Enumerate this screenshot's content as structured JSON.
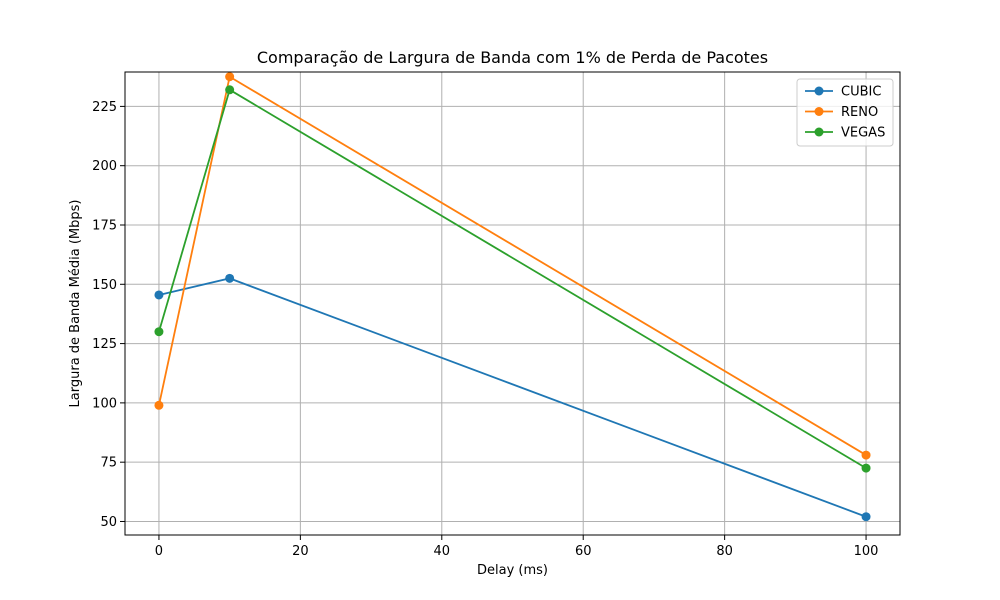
{
  "chart_data": {
    "type": "line",
    "title": "Comparação de Largura de Banda com 1% de Perda de Pacotes",
    "xlabel": "Delay (ms)",
    "ylabel": "Largura de Banda Média (Mbps)",
    "x": [
      0,
      10,
      100
    ],
    "xlim": [
      -4.8,
      104.8
    ],
    "ylim": [
      44.3,
      239.5
    ],
    "xticks": [
      0,
      20,
      40,
      60,
      80,
      100
    ],
    "yticks": [
      50,
      75,
      100,
      125,
      150,
      175,
      200,
      225
    ],
    "grid": true,
    "legend_position": "top-right",
    "series": [
      {
        "name": "CUBIC",
        "color": "#1f77b4",
        "values": [
          145.5,
          152.5,
          52
        ]
      },
      {
        "name": "RENO",
        "color": "#ff7f0e",
        "values": [
          99,
          237.5,
          78
        ]
      },
      {
        "name": "VEGAS",
        "color": "#2ca02c",
        "values": [
          130,
          232,
          72.5
        ]
      }
    ]
  }
}
